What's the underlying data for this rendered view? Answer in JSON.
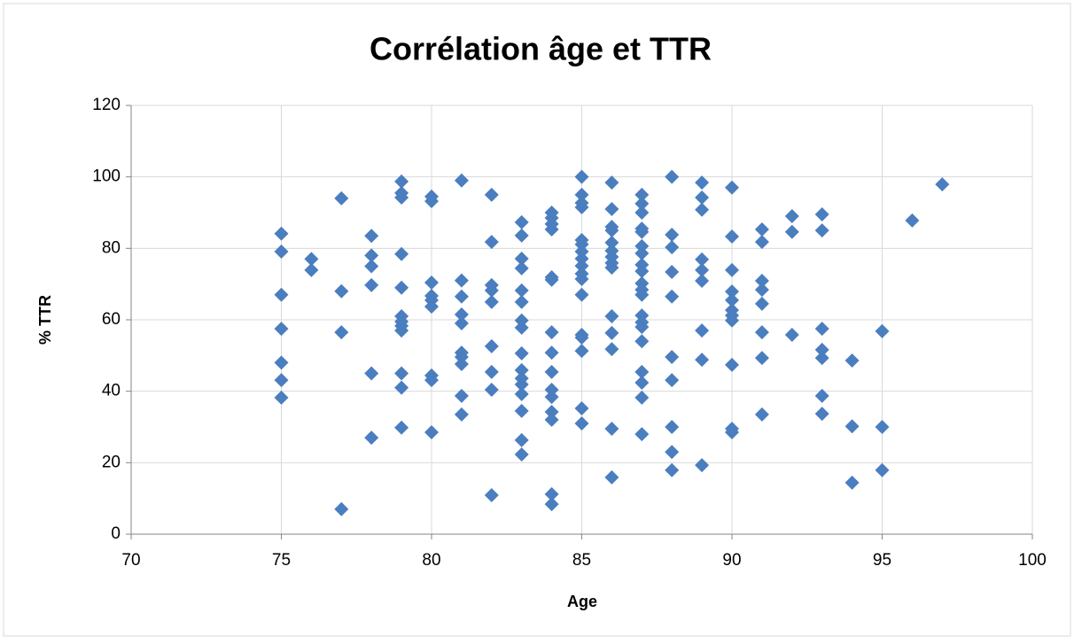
{
  "chart_data": {
    "type": "scatter",
    "title": "Corrélation âge et TTR",
    "x_label": "Age",
    "y_label": "% TTR",
    "color": "#4a7ebf",
    "grid": true,
    "xlim": [
      70,
      100
    ],
    "xticks": [
      70,
      75,
      80,
      85,
      90,
      95,
      100
    ],
    "ylim": [
      0,
      120
    ],
    "yticks": [
      0,
      20,
      40,
      60,
      80,
      100,
      120
    ],
    "x": [
      75,
      75,
      75,
      75,
      75,
      75,
      75,
      76,
      76,
      77,
      77,
      77,
      77,
      78,
      78,
      78,
      78,
      78,
      78,
      79,
      79,
      79,
      79,
      79,
      79,
      79,
      79,
      79,
      79,
      79,
      79,
      80,
      80,
      80,
      80,
      80,
      80,
      80,
      80,
      80,
      81,
      81,
      81,
      81,
      81,
      81,
      81,
      81,
      81,
      81,
      82,
      82,
      82,
      82,
      82,
      82,
      82,
      82,
      82,
      83,
      83,
      83,
      83,
      83,
      83,
      83,
      83,
      83,
      83,
      83,
      83,
      83,
      83,
      83,
      83,
      84,
      84,
      84,
      84,
      84,
      84,
      84,
      84,
      84,
      84,
      84,
      84,
      84,
      84,
      84,
      85,
      85,
      85,
      85,
      85,
      85,
      85,
      85,
      85,
      85,
      85,
      85,
      85,
      85,
      85,
      85,
      85,
      86,
      86,
      86,
      86,
      86,
      86,
      86,
      86,
      86,
      86,
      86,
      86,
      86,
      86,
      87,
      87,
      87,
      87,
      87,
      87,
      87,
      87,
      87,
      87,
      87,
      87,
      87,
      87,
      87,
      87,
      87,
      87,
      87,
      87,
      88,
      88,
      88,
      88,
      88,
      88,
      88,
      88,
      88,
      88,
      89,
      89,
      89,
      89,
      89,
      89,
      89,
      89,
      89,
      90,
      90,
      90,
      90,
      90,
      90,
      90,
      90,
      90,
      90,
      90,
      91,
      91,
      91,
      91,
      91,
      91,
      91,
      91,
      92,
      92,
      92,
      93,
      93,
      93,
      93,
      93,
      93,
      93,
      94,
      94,
      94,
      95,
      95,
      95,
      96,
      97
    ],
    "values": [
      84.1,
      79.1,
      67,
      57.5,
      48,
      43.1,
      38.2,
      77,
      73.9,
      94,
      68,
      56.5,
      7,
      83.5,
      78,
      75,
      69.7,
      45,
      27,
      98.7,
      95.5,
      94.2,
      78.4,
      69,
      61,
      59.5,
      58.3,
      57,
      45,
      41,
      29.8,
      94.5,
      93.2,
      70.4,
      66.7,
      65.5,
      63.7,
      44.4,
      43.1,
      28.5,
      99,
      71,
      66.5,
      61.5,
      59,
      50.8,
      49.6,
      47.6,
      38.7,
      33.5,
      95,
      81.8,
      69.7,
      68.2,
      65,
      52.6,
      45.4,
      40.4,
      10.9,
      87.3,
      83.6,
      77.1,
      74.4,
      68.2,
      65,
      59.8,
      57.8,
      50.6,
      45.9,
      43.6,
      41.9,
      39.2,
      34.5,
      26.3,
      22.3,
      90,
      88.5,
      86.8,
      85.3,
      71.9,
      71.2,
      56.5,
      50.8,
      45.4,
      40.4,
      38.4,
      34.2,
      32,
      11.2,
      8.4,
      100,
      95,
      92.7,
      91.5,
      82.3,
      81.1,
      79.1,
      77.1,
      75.1,
      72.9,
      71.4,
      67,
      55.8,
      55,
      51.3,
      35.2,
      31,
      98.4,
      91,
      86,
      85,
      81.6,
      79.3,
      77.6,
      75.9,
      74.6,
      61,
      56.3,
      51.8,
      29.5,
      15.9,
      95,
      92.5,
      90,
      85.5,
      84.6,
      80.6,
      78.6,
      75.4,
      73.6,
      70.2,
      68.4,
      67,
      61.2,
      59.3,
      58,
      54,
      45.4,
      42.4,
      38.2,
      28,
      100,
      83.8,
      80.3,
      73.4,
      66.5,
      49.6,
      43.1,
      30,
      23,
      17.9,
      98.4,
      94.2,
      90.8,
      76.9,
      73.9,
      70.9,
      57,
      48.8,
      19.3,
      97,
      83.3,
      73.9,
      67.9,
      65.5,
      62.7,
      61.2,
      59.8,
      47.4,
      29.5,
      28.5,
      85.3,
      81.8,
      70.9,
      68.4,
      64.5,
      56.5,
      49.3,
      33.5,
      89,
      84.6,
      55.8,
      89.5,
      85,
      57.5,
      51.6,
      49.3,
      38.7,
      33.7,
      48.6,
      30.2,
      14.4,
      56.8,
      30,
      17.9,
      87.8,
      97.9
    ]
  }
}
